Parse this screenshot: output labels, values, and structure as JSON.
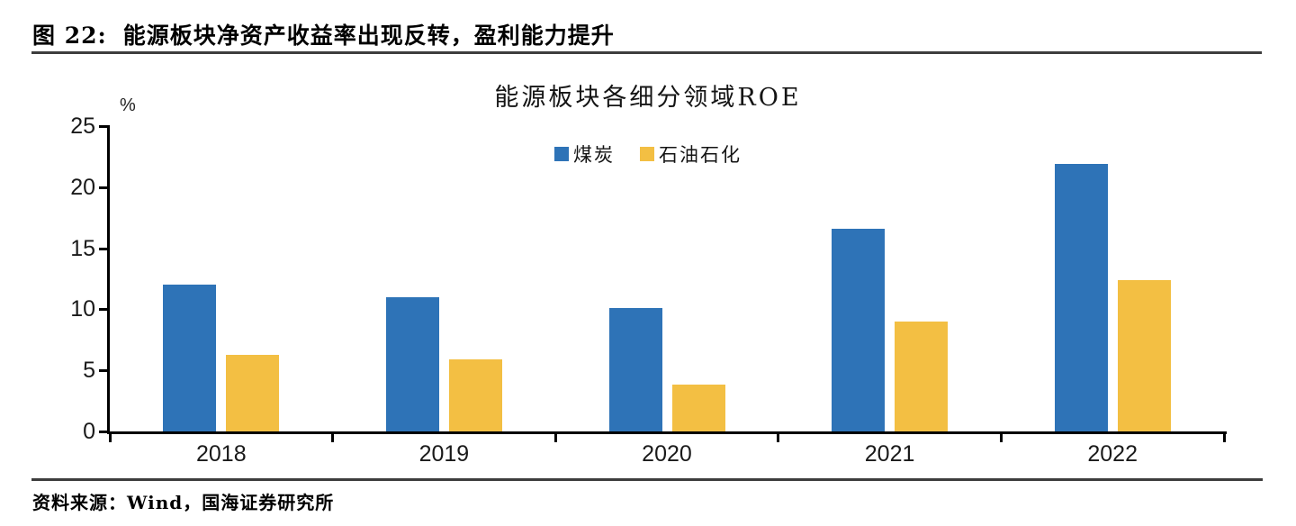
{
  "figure": {
    "label": "图 22:",
    "title": "能源板块净资产收益率出现反转，盈利能力提升"
  },
  "source_text": "资料来源：Wind，国海证券研究所",
  "chart_data": {
    "type": "bar",
    "title": "能源板块各细分领域ROE",
    "y_unit_label": "%",
    "categories": [
      "2018",
      "2019",
      "2020",
      "2021",
      "2022"
    ],
    "series": [
      {
        "name": "煤炭",
        "color": "#2E73B7",
        "values": [
          12.0,
          11.0,
          10.1,
          16.6,
          21.9
        ]
      },
      {
        "name": "石油石化",
        "color": "#F3BF43",
        "values": [
          6.3,
          5.9,
          3.8,
          9.0,
          12.4
        ]
      }
    ],
    "ylim": [
      0,
      25
    ],
    "yticks": [
      0,
      5,
      10,
      15,
      20,
      25
    ],
    "legend_position": "top-center",
    "grid": false,
    "axis_color": "#000000"
  }
}
